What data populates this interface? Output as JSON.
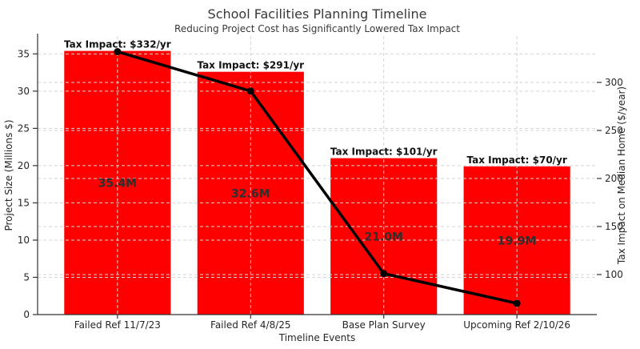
{
  "title": "School Facilities Planning Timeline",
  "subtitle": "Reducing Project Cost has Significantly Lowered Tax Impact",
  "chart_data": {
    "type": "bar",
    "combo": "bar+line",
    "categories": [
      "Failed Ref 11/7/23",
      "Failed Ref 4/8/25",
      "Base Plan Survey",
      "Upcoming Ref 2/10/26"
    ],
    "xlabel": "Timeline Events",
    "series": [
      {
        "name": "Project Size",
        "type": "bar",
        "axis": "left",
        "values": [
          35.4,
          32.6,
          21.0,
          19.9
        ],
        "bar_labels": [
          "35.4M",
          "32.6M",
          "21.0M",
          "19.9M"
        ],
        "color": "#ff0000"
      },
      {
        "name": "Tax Impact",
        "type": "line",
        "axis": "right",
        "values": [
          332,
          291,
          101,
          70
        ],
        "annotations": [
          "Tax Impact: $332/yr",
          "Tax Impact: $291/yr",
          "Tax Impact: $101/yr",
          "Tax Impact: $70/yr"
        ],
        "color": "#000000"
      }
    ],
    "left_axis": {
      "label": "Project Size (Millions $)",
      "ticks": [
        0,
        5,
        10,
        15,
        20,
        25,
        30,
        35
      ],
      "lim": [
        0,
        37.4
      ]
    },
    "right_axis": {
      "label": "Tax Impact on Median Home ($/year)",
      "ticks": [
        100,
        150,
        200,
        250,
        300
      ],
      "lim": [
        58.3,
        348.3
      ]
    },
    "legend": "none",
    "grid": {
      "on": true,
      "style": "dashed",
      "color": "#d3d3d3"
    }
  },
  "colors": {
    "bar": "#ff0000",
    "line": "#000000",
    "grid": "#d3d3d3",
    "spine": "#333333",
    "tick_text": "#262626",
    "bar_label_text": "#2f2f2f",
    "annotation_text": "#111111",
    "title_text": "#383838"
  }
}
